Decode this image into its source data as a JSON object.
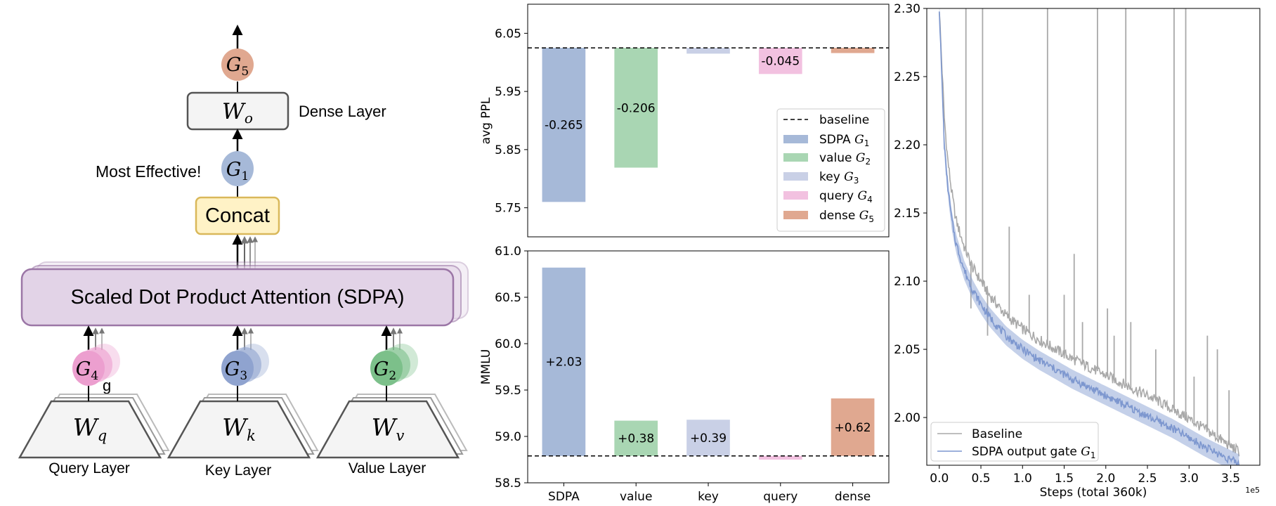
{
  "diagram": {
    "dense_label": "Dense Layer",
    "most_effective": "Most Effective!",
    "concat": "Concat",
    "sdpa": "Scaled Dot Product Attention (SDPA)",
    "query_layer": "Query Layer",
    "key_layer": "Key Layer",
    "value_layer": "Value Layer",
    "stray_label": "g",
    "gates": {
      "g5": {
        "base": "G",
        "sub": "5"
      },
      "g1": {
        "base": "G",
        "sub": "1"
      },
      "g4": {
        "base": "G",
        "sub": "4"
      },
      "g3": {
        "base": "G",
        "sub": "3"
      },
      "g2": {
        "base": "G",
        "sub": "2"
      }
    },
    "weights": {
      "wo": {
        "base": "W",
        "sub": "o"
      },
      "wq": {
        "base": "W",
        "sub": "q"
      },
      "wk": {
        "base": "W",
        "sub": "k"
      },
      "wv": {
        "base": "W",
        "sub": "v"
      }
    },
    "colors": {
      "g5": "#e0a890",
      "g1": "#a6b9d8",
      "g4": "#ec9fcf",
      "g3": "#8fa3cf",
      "g2": "#7cc08a",
      "concat_fill": "#fff2c6",
      "concat_border": "#d9b85a",
      "sdpa_fill": "#e2d3e7",
      "sdpa_border": "#9b76a6"
    }
  },
  "chart_data": [
    {
      "type": "bar",
      "ylabel": "avg PPL",
      "ylim": [
        5.7,
        6.1
      ],
      "yticks": [
        "5.75",
        "5.85",
        "5.95",
        "6.05"
      ],
      "baseline": 6.025,
      "categories": [
        "SDPA",
        "value",
        "key",
        "query",
        "dense"
      ],
      "values": [
        5.76,
        5.819,
        6.015,
        5.98,
        6.016
      ],
      "deltas": [
        -0.265,
        -0.206,
        -0.01,
        -0.045,
        -0.009
      ],
      "labels": [
        "-0.265",
        "-0.206",
        "",
        "-0.045",
        ""
      ],
      "colors": [
        "#a6b9d8",
        "#a9d6b3",
        "#c9d0e6",
        "#f2c1e0",
        "#e0a890"
      ],
      "legend": {
        "position": "lower-right",
        "entries": [
          {
            "text": "baseline",
            "sym": "",
            "sub": ""
          },
          {
            "text": "SDPA ",
            "sym": "G",
            "sub": "1"
          },
          {
            "text": "value ",
            "sym": "G",
            "sub": "2"
          },
          {
            "text": "key ",
            "sym": "G",
            "sub": "3"
          },
          {
            "text": "query ",
            "sym": "G",
            "sub": "4"
          },
          {
            "text": "dense ",
            "sym": "G",
            "sub": "5"
          }
        ]
      }
    },
    {
      "type": "bar",
      "ylabel": "MMLU",
      "ylim": [
        58.5,
        61.0
      ],
      "yticks": [
        "58.5",
        "59.0",
        "59.5",
        "60.0",
        "60.5",
        "61.0"
      ],
      "baseline": 58.79,
      "categories": [
        "SDPA",
        "value",
        "key",
        "query",
        "dense"
      ],
      "values": [
        60.82,
        59.17,
        59.18,
        58.75,
        59.41
      ],
      "labels": [
        "+2.03",
        "+0.38",
        "+0.39",
        "",
        "+0.62"
      ],
      "colors": [
        "#a6b9d8",
        "#a9d6b3",
        "#c9d0e6",
        "#f2c1e0",
        "#e0a890"
      ]
    },
    {
      "type": "line",
      "xlabel": "Steps (total 360k)",
      "x_exponent": "1e5",
      "xlim": [
        -0.15,
        3.85
      ],
      "ylim": [
        1.965,
        2.3
      ],
      "xticks": [
        "0.0",
        "0.5",
        "1.0",
        "1.5",
        "2.0",
        "2.5",
        "3.0",
        "3.5"
      ],
      "yticks": [
        "2.00",
        "2.05",
        "2.10",
        "2.15",
        "2.20",
        "2.25",
        "2.30"
      ],
      "legend": {
        "position": "lower-left"
      },
      "series": [
        {
          "name": "Baseline",
          "sym": "",
          "sub": "",
          "color": "#a9a9a9",
          "points": [
            [
              0.0,
              2.3
            ],
            [
              0.03,
              2.26
            ],
            [
              0.06,
              2.22
            ],
            [
              0.1,
              2.19
            ],
            [
              0.15,
              2.165
            ],
            [
              0.2,
              2.145
            ],
            [
              0.3,
              2.125
            ],
            [
              0.4,
              2.11
            ],
            [
              0.5,
              2.1
            ],
            [
              0.6,
              2.09
            ],
            [
              0.8,
              2.075
            ],
            [
              1.0,
              2.065
            ],
            [
              1.2,
              2.057
            ],
            [
              1.4,
              2.05
            ],
            [
              1.6,
              2.043
            ],
            [
              1.8,
              2.037
            ],
            [
              2.0,
              2.031
            ],
            [
              2.2,
              2.025
            ],
            [
              2.4,
              2.019
            ],
            [
              2.6,
              2.013
            ],
            [
              2.8,
              2.006
            ],
            [
              3.0,
              1.999
            ],
            [
              3.2,
              1.991
            ],
            [
              3.4,
              1.983
            ],
            [
              3.6,
              1.975
            ]
          ],
          "spikes": [
            [
              0.32,
              2.3
            ],
            [
              0.38,
              2.08
            ],
            [
              0.52,
              2.3
            ],
            [
              0.58,
              2.06
            ],
            [
              0.84,
              2.14
            ],
            [
              1.08,
              2.09
            ],
            [
              1.3,
              2.3
            ],
            [
              1.5,
              2.09
            ],
            [
              1.62,
              2.12
            ],
            [
              1.72,
              2.07
            ],
            [
              1.9,
              2.3
            ],
            [
              2.02,
              2.08
            ],
            [
              2.1,
              2.06
            ],
            [
              2.24,
              2.3
            ],
            [
              2.3,
              2.07
            ],
            [
              2.6,
              2.05
            ],
            [
              2.82,
              2.3
            ],
            [
              2.96,
              2.3
            ],
            [
              3.06,
              2.03
            ],
            [
              3.22,
              2.06
            ],
            [
              3.34,
              2.05
            ],
            [
              3.48,
              2.02
            ]
          ]
        },
        {
          "name": "SDPA output gate ",
          "sym": "G",
          "sub": "1",
          "color": "#7d97cf",
          "points": [
            [
              0.0,
              2.3
            ],
            [
              0.03,
              2.25
            ],
            [
              0.06,
              2.2
            ],
            [
              0.1,
              2.17
            ],
            [
              0.15,
              2.145
            ],
            [
              0.2,
              2.128
            ],
            [
              0.3,
              2.108
            ],
            [
              0.4,
              2.094
            ],
            [
              0.5,
              2.083
            ],
            [
              0.6,
              2.074
            ],
            [
              0.8,
              2.06
            ],
            [
              1.0,
              2.05
            ],
            [
              1.2,
              2.042
            ],
            [
              1.4,
              2.035
            ],
            [
              1.6,
              2.028
            ],
            [
              1.8,
              2.022
            ],
            [
              2.0,
              2.016
            ],
            [
              2.2,
              2.01
            ],
            [
              2.4,
              2.004
            ],
            [
              2.6,
              1.998
            ],
            [
              2.8,
              1.992
            ],
            [
              3.0,
              1.985
            ],
            [
              3.2,
              1.978
            ],
            [
              3.4,
              1.972
            ],
            [
              3.6,
              1.966
            ]
          ],
          "spikes": []
        }
      ]
    }
  ]
}
